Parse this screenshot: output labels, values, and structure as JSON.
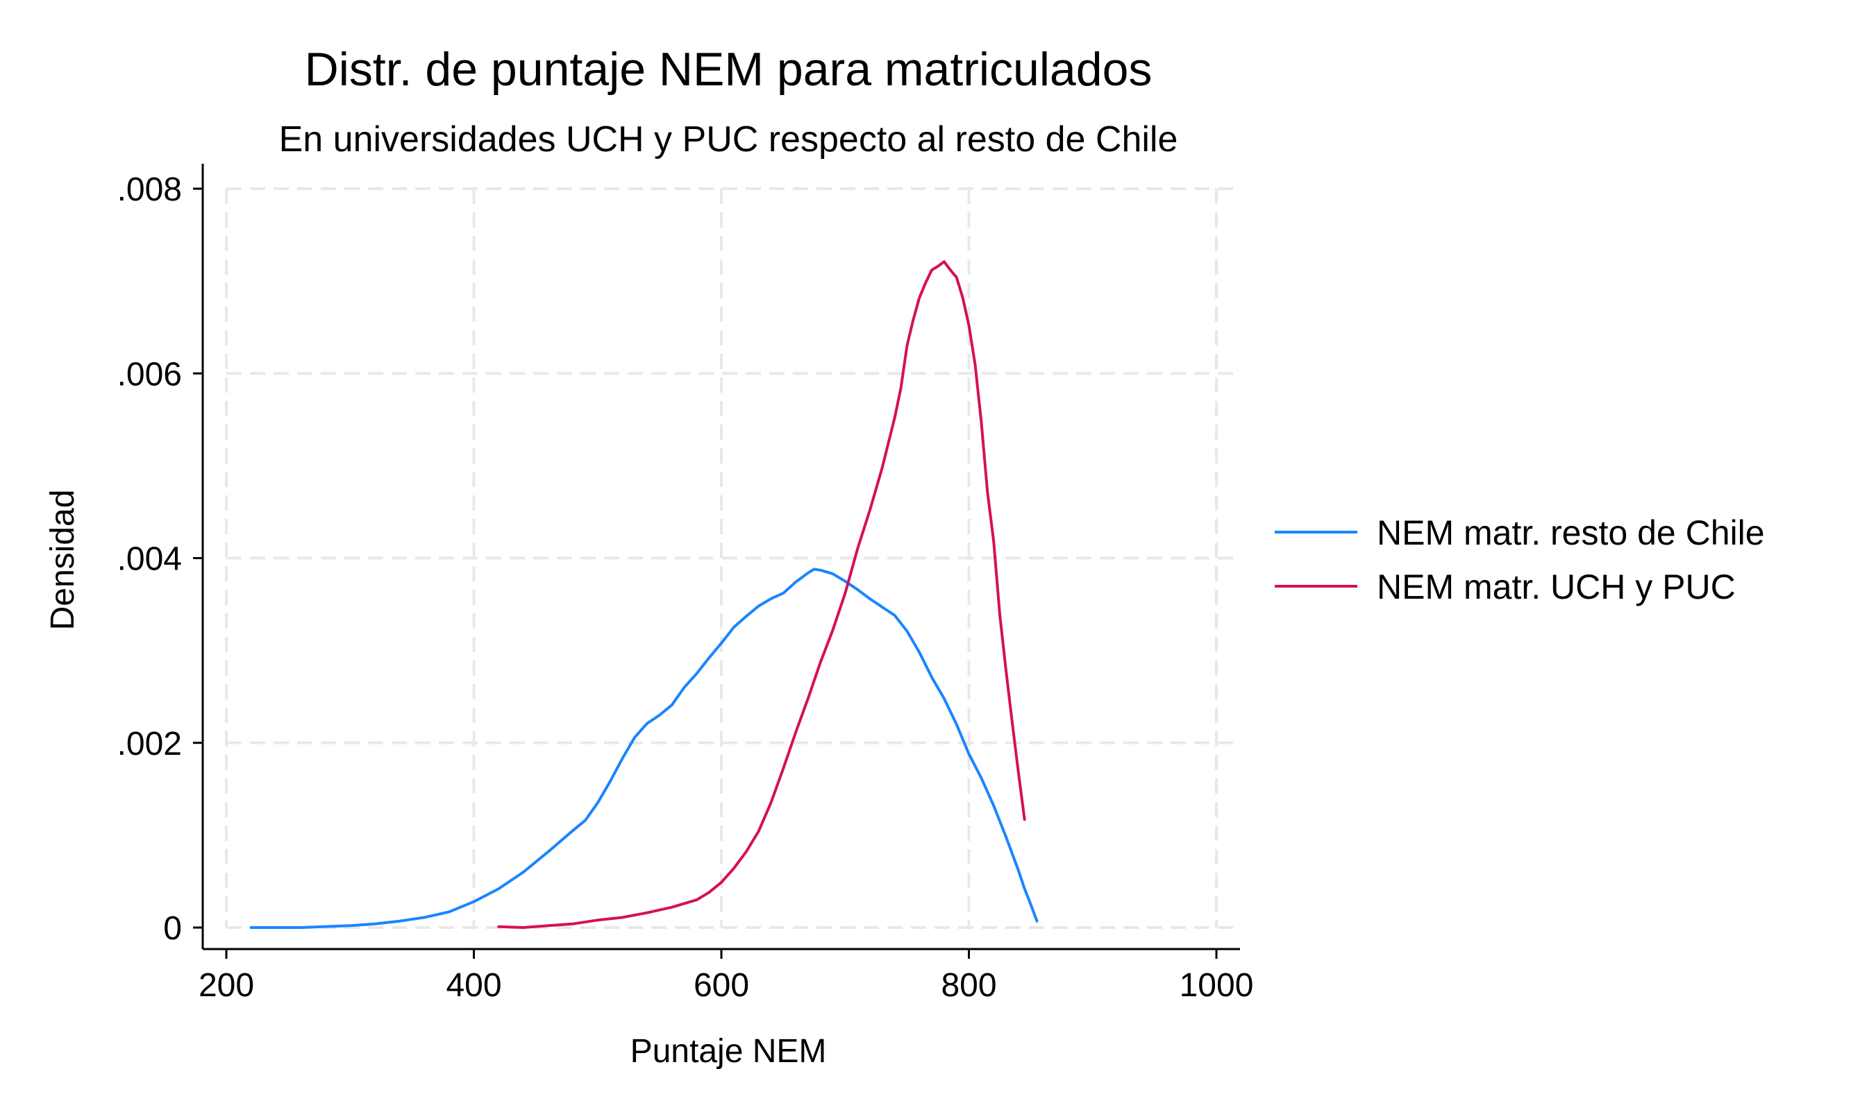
{
  "chart_data": {
    "type": "line",
    "title": "Distr. de puntaje NEM para matriculados",
    "subtitle": "En universidades UCH y PUC respecto al resto de Chile",
    "xlabel": "Puntaje NEM",
    "ylabel": "Densidad",
    "xlim": [
      200,
      1000
    ],
    "ylim": [
      0,
      0.008
    ],
    "x_ticks": [
      {
        "value": 200,
        "label": "200"
      },
      {
        "value": 400,
        "label": "400"
      },
      {
        "value": 600,
        "label": "600"
      },
      {
        "value": 800,
        "label": "800"
      },
      {
        "value": 1000,
        "label": "1000"
      }
    ],
    "y_ticks": [
      {
        "value": 0,
        "label": "0"
      },
      {
        "value": 0.002,
        "label": ".002"
      },
      {
        "value": 0.004,
        "label": ".004"
      },
      {
        "value": 0.006,
        "label": ".006"
      },
      {
        "value": 0.008,
        "label": ".008"
      }
    ],
    "grid": true,
    "legend_position": "right",
    "series": [
      {
        "name": "NEM matr. resto de Chile",
        "color": "#1a85ff",
        "x": [
          220,
          260,
          300,
          320,
          340,
          360,
          380,
          400,
          420,
          440,
          460,
          480,
          490,
          500,
          510,
          520,
          530,
          540,
          550,
          560,
          570,
          580,
          590,
          600,
          610,
          620,
          630,
          640,
          650,
          660,
          670,
          675,
          680,
          690,
          700,
          710,
          720,
          730,
          740,
          750,
          760,
          770,
          780,
          790,
          800,
          810,
          820,
          830,
          840,
          845,
          850,
          855
        ],
        "y": [
          0.0,
          0.0,
          2e-05,
          4e-05,
          7e-05,
          0.00011,
          0.00017,
          0.00028,
          0.00042,
          0.0006,
          0.00082,
          0.00105,
          0.00116,
          0.00135,
          0.00158,
          0.00183,
          0.00206,
          0.00221,
          0.0023,
          0.00241,
          0.0026,
          0.00275,
          0.00292,
          0.00308,
          0.00325,
          0.00337,
          0.00348,
          0.00356,
          0.00362,
          0.00374,
          0.00384,
          0.00388,
          0.00387,
          0.00383,
          0.00375,
          0.00366,
          0.00356,
          0.00347,
          0.00338,
          0.00321,
          0.00298,
          0.00271,
          0.00248,
          0.0022,
          0.00188,
          0.00162,
          0.00132,
          0.00098,
          0.00062,
          0.00042,
          0.00025,
          7e-05
        ]
      },
      {
        "name": "NEM matr. UCH y PUC",
        "color": "#d5105a",
        "x": [
          420,
          440,
          460,
          480,
          500,
          520,
          540,
          560,
          580,
          590,
          600,
          610,
          620,
          630,
          640,
          650,
          660,
          670,
          680,
          690,
          700,
          710,
          720,
          730,
          740,
          745,
          750,
          755,
          760,
          765,
          770,
          775,
          780,
          785,
          790,
          795,
          800,
          805,
          810,
          815,
          820,
          825,
          830,
          835,
          840,
          845
        ],
        "y": [
          1e-05,
          0.0,
          2e-05,
          4e-05,
          8e-05,
          0.00011,
          0.00016,
          0.00022,
          0.0003,
          0.00038,
          0.00049,
          0.00064,
          0.00082,
          0.00104,
          0.00135,
          0.00172,
          0.00211,
          0.00248,
          0.00287,
          0.00322,
          0.00362,
          0.0041,
          0.00452,
          0.00498,
          0.00552,
          0.00584,
          0.0063,
          0.00658,
          0.00682,
          0.00698,
          0.00712,
          0.00716,
          0.00721,
          0.00712,
          0.00704,
          0.00682,
          0.00652,
          0.0061,
          0.00548,
          0.00472,
          0.00418,
          0.00338,
          0.00278,
          0.00222,
          0.00168,
          0.00117
        ]
      }
    ]
  }
}
